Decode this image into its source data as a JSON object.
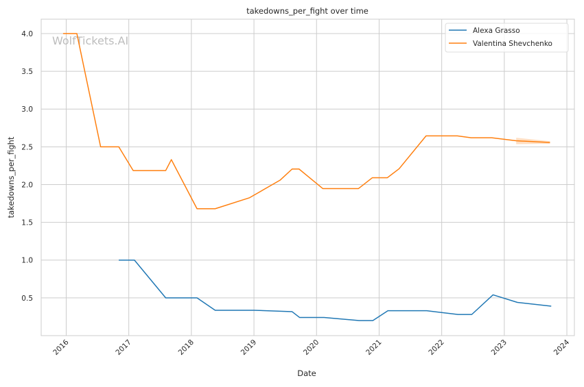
{
  "chart_data": {
    "type": "line",
    "title": "takedowns_per_fight over time",
    "xlabel": "Date",
    "ylabel": "takedowns_per_fight",
    "xlim": [
      2015.6,
      2024.12
    ],
    "ylim": [
      0.0,
      4.19
    ],
    "x_ticks": [
      2016,
      2017,
      2018,
      2019,
      2020,
      2021,
      2022,
      2023,
      2024
    ],
    "x_tick_labels": [
      "2016",
      "2017",
      "2018",
      "2019",
      "2020",
      "2021",
      "2022",
      "2023",
      "2024"
    ],
    "y_ticks": [
      0.5,
      1.0,
      1.5,
      2.0,
      2.5,
      3.0,
      3.5,
      4.0
    ],
    "y_tick_labels": [
      "0.5",
      "1.0",
      "1.5",
      "2.0",
      "2.5",
      "3.0",
      "3.5",
      "4.0"
    ],
    "grid": true,
    "legend_position": "top-right",
    "watermark": "WolfTickets.AI",
    "series": [
      {
        "name": "Alexa Grasso",
        "color": "#1f77b4",
        "x": [
          2016.84,
          2017.09,
          2017.59,
          2018.09,
          2018.38,
          2019.0,
          2019.61,
          2019.73,
          2020.12,
          2020.68,
          2020.9,
          2021.14,
          2021.76,
          2022.26,
          2022.48,
          2022.82,
          2023.21,
          2023.75
        ],
        "y": [
          1.0,
          1.0,
          0.5,
          0.5,
          0.336,
          0.336,
          0.317,
          0.24,
          0.24,
          0.2,
          0.2,
          0.33,
          0.33,
          0.28,
          0.28,
          0.54,
          0.44,
          0.39
        ]
      },
      {
        "name": "Valentina Shevchenko",
        "color": "#ff7f0e",
        "x": [
          2015.95,
          2016.17,
          2016.55,
          2016.84,
          2017.07,
          2017.59,
          2017.68,
          2018.09,
          2018.38,
          2018.93,
          2019.42,
          2019.61,
          2019.72,
          2020.1,
          2020.67,
          2020.89,
          2021.13,
          2021.32,
          2021.75,
          2022.25,
          2022.47,
          2022.8,
          2023.19,
          2023.73
        ],
        "y": [
          4.0,
          4.0,
          2.5,
          2.5,
          2.186,
          2.186,
          2.33,
          1.68,
          1.68,
          1.826,
          2.06,
          2.206,
          2.206,
          1.947,
          1.947,
          2.09,
          2.09,
          2.21,
          2.645,
          2.645,
          2.62,
          2.62,
          2.58,
          2.557
        ],
        "band": {
          "x": [
            2023.19,
            2023.73
          ],
          "lower": [
            2.535,
            2.54
          ],
          "upper": [
            2.62,
            2.575
          ]
        }
      }
    ]
  }
}
